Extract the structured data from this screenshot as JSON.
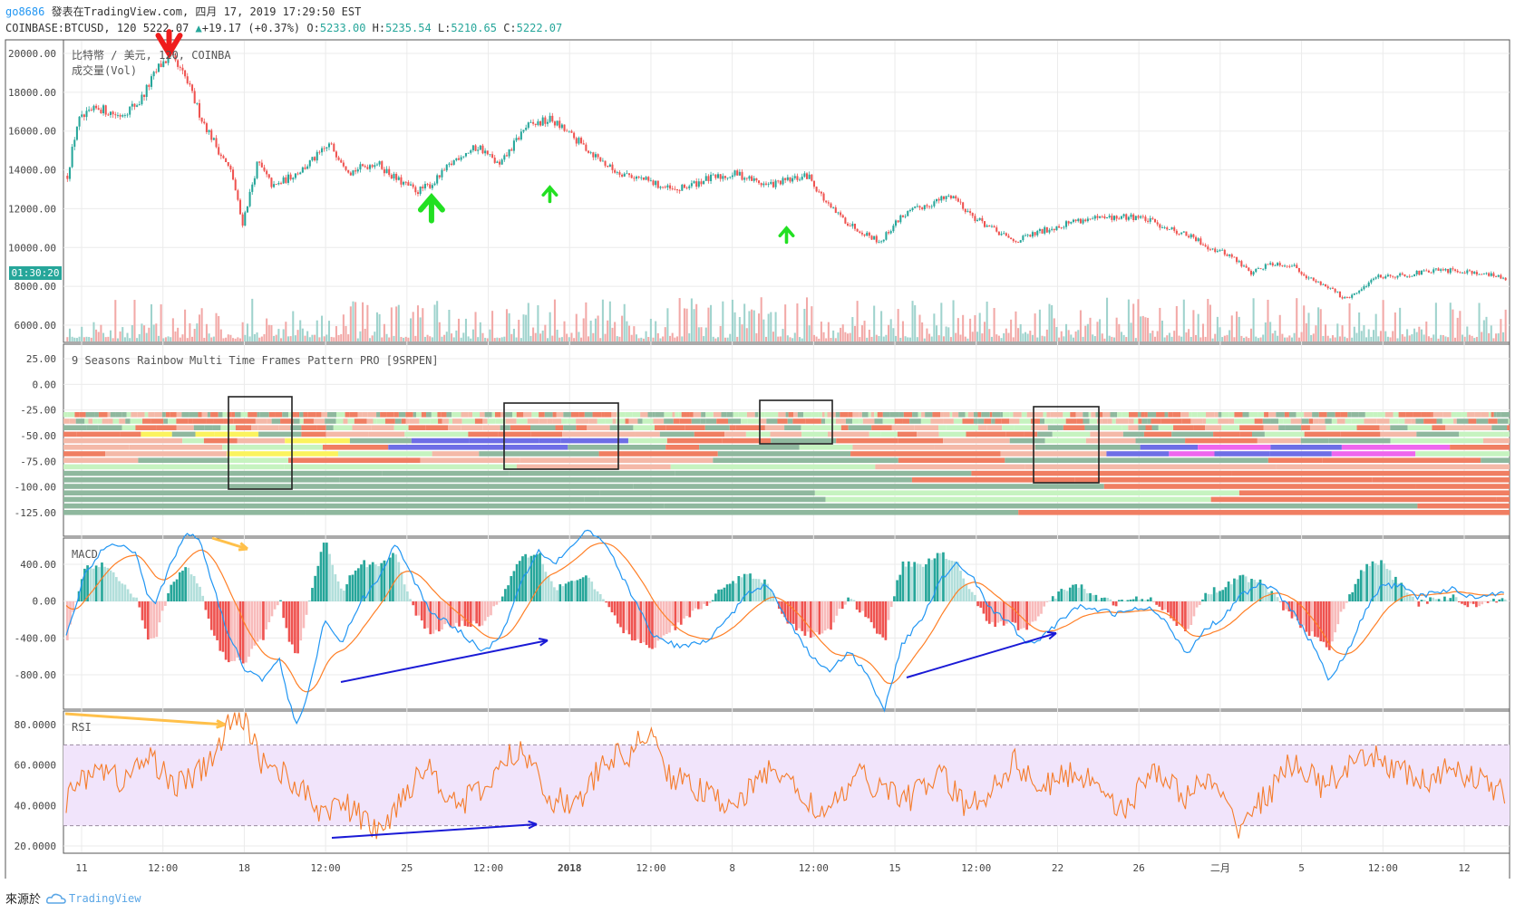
{
  "header": {
    "user": "go8686",
    "published": "發表在TradingView.com, 四月 17, 2019 17:29:50 EST",
    "symbol": "COINBASE:BTCUSD, 120",
    "last": "5222.07",
    "change": "+19.17 (+0.37%)",
    "o_label": "O:",
    "o_value": "5233.00",
    "h_label": "H:",
    "h_value": "5235.54",
    "l_label": "L:",
    "l_value": "5210.65",
    "c_label": "C:",
    "c_value": "5222.07"
  },
  "colors": {
    "up": "#26a69a",
    "down": "#ef5350",
    "macd": "#2196f3",
    "signal": "#ff7f26",
    "rsi": "#f57c2a",
    "rsi_band": "#f1e4fb",
    "arrow_blue": "#1a1ad6",
    "arrow_yellow": "#ffc04a"
  },
  "panes": {
    "price": {
      "title": "比特幣 / 美元, 120, COINBA",
      "subtitle": "成交量(Vol)",
      "time_badge": "01:30:20",
      "y_ticks": [
        "20000.00",
        "18000.00",
        "16000.00",
        "14000.00",
        "12000.00",
        "10000.00",
        "8000.00",
        "6000.00"
      ]
    },
    "rainbow": {
      "title": "9 Seasons Rainbow Multi Time Frames Pattern PRO [9SRPEN]",
      "y_ticks": [
        "25.00",
        "0.00",
        "-25.00",
        "-50.00",
        "-75.00",
        "-100.00",
        "-125.00"
      ]
    },
    "macd": {
      "title": "MACD",
      "y_ticks": [
        "400.00",
        "0.00",
        "-400.00",
        "-800.00"
      ]
    },
    "rsi": {
      "title": "RSI",
      "y_ticks": [
        "80.0000",
        "60.0000",
        "40.0000",
        "20.0000"
      ]
    }
  },
  "x_ticks": [
    "11",
    "12:00",
    "18",
    "12:00",
    "25",
    "12:00",
    "2018",
    "12:00",
    "8",
    "12:00",
    "15",
    "12:00",
    "22",
    "26",
    "二月",
    "5",
    "12:00",
    "12"
  ],
  "chart_data": [
    {
      "type": "candlestick",
      "name": "BTCUSD 120",
      "ylim": [
        5000,
        20700
      ],
      "x_index_range": [
        0,
        600
      ],
      "close_anchors": [
        [
          0,
          13700
        ],
        [
          10,
          16500
        ],
        [
          30,
          17200
        ],
        [
          50,
          16800
        ],
        [
          70,
          17500
        ],
        [
          90,
          19400
        ],
        [
          100,
          19800
        ],
        [
          115,
          18700
        ],
        [
          130,
          16700
        ],
        [
          150,
          14700
        ],
        [
          160,
          13800
        ],
        [
          170,
          11200
        ],
        [
          185,
          14400
        ],
        [
          200,
          13100
        ],
        [
          230,
          14100
        ],
        [
          255,
          15300
        ],
        [
          275,
          13900
        ],
        [
          300,
          14400
        ],
        [
          320,
          13500
        ],
        [
          340,
          12900
        ],
        [
          355,
          13300
        ],
        [
          380,
          14700
        ],
        [
          400,
          15200
        ],
        [
          420,
          14200
        ],
        [
          445,
          16200
        ],
        [
          470,
          16600
        ],
        [
          500,
          15300
        ],
        [
          530,
          14000
        ],
        [
          560,
          13500
        ],
        [
          590,
          12900
        ],
        [
          620,
          13500
        ],
        [
          650,
          13800
        ],
        [
          680,
          13200
        ],
        [
          720,
          13700
        ],
        [
          740,
          12100
        ],
        [
          760,
          11200
        ],
        [
          790,
          10300
        ],
        [
          810,
          11600
        ],
        [
          830,
          12100
        ],
        [
          860,
          12700
        ],
        [
          880,
          11600
        ],
        [
          900,
          10900
        ],
        [
          920,
          10300
        ],
        [
          950,
          10900
        ],
        [
          980,
          11400
        ],
        [
          1010,
          11500
        ],
        [
          1040,
          11600
        ],
        [
          1060,
          11200
        ],
        [
          1090,
          10600
        ],
        [
          1110,
          10000
        ],
        [
          1130,
          9600
        ],
        [
          1150,
          8700
        ],
        [
          1170,
          9200
        ],
        [
          1190,
          9100
        ],
        [
          1210,
          8300
        ],
        [
          1230,
          7900
        ],
        [
          1240,
          7300
        ],
        [
          1255,
          7700
        ],
        [
          1270,
          8500
        ],
        [
          1300,
          8600
        ],
        [
          1330,
          8800
        ],
        [
          1360,
          8800
        ],
        [
          1400,
          8400
        ]
      ],
      "sell_signals": [
        [
          100,
          19900
        ]
      ],
      "buy_signals": [
        [
          355,
          12600
        ],
        [
          470,
          13100
        ],
        [
          700,
          11000
        ]
      ]
    },
    {
      "type": "heatmap",
      "name": "9 Seasons Rainbow Multi Time Frames Pattern PRO [9SRPEN]",
      "ylim": [
        -135,
        30
      ],
      "rows": [
        -25,
        -32,
        -40,
        -47,
        -55,
        -62,
        -70,
        -77,
        -85,
        -92,
        -100,
        -107,
        -115,
        -122,
        -130,
        -137
      ],
      "highlight_boxes_x": [
        [
          71,
          98
        ],
        [
          188,
          236
        ],
        [
          301,
          332
        ],
        [
          422,
          450
        ]
      ]
    },
    {
      "type": "line",
      "name": "MACD",
      "ylim": [
        -950,
        520
      ],
      "series_macd_anchors": [
        [
          0,
          -260
        ],
        [
          10,
          180
        ],
        [
          20,
          380
        ],
        [
          30,
          420
        ],
        [
          40,
          340
        ],
        [
          45,
          80
        ],
        [
          50,
          -10
        ],
        [
          60,
          300
        ],
        [
          68,
          500
        ],
        [
          75,
          440
        ],
        [
          80,
          230
        ],
        [
          90,
          -200
        ],
        [
          100,
          -480
        ],
        [
          110,
          -560
        ],
        [
          120,
          -420
        ],
        [
          125,
          -720
        ],
        [
          130,
          -900
        ],
        [
          138,
          -560
        ],
        [
          145,
          -150
        ],
        [
          155,
          -300
        ],
        [
          165,
          -10
        ],
        [
          175,
          150
        ],
        [
          185,
          420
        ],
        [
          195,
          170
        ],
        [
          205,
          -80
        ],
        [
          215,
          -150
        ],
        [
          225,
          -260
        ],
        [
          235,
          -360
        ],
        [
          245,
          -240
        ],
        [
          255,
          120
        ],
        [
          265,
          370
        ],
        [
          275,
          280
        ],
        [
          285,
          410
        ],
        [
          293,
          520
        ],
        [
          305,
          380
        ],
        [
          315,
          120
        ],
        [
          330,
          -250
        ],
        [
          345,
          -330
        ],
        [
          360,
          -290
        ],
        [
          375,
          -80
        ],
        [
          385,
          80
        ],
        [
          395,
          120
        ],
        [
          405,
          -120
        ],
        [
          420,
          -420
        ],
        [
          430,
          -500
        ],
        [
          440,
          -360
        ],
        [
          450,
          -520
        ],
        [
          460,
          -780
        ],
        [
          470,
          -310
        ],
        [
          480,
          -150
        ],
        [
          490,
          120
        ],
        [
          500,
          290
        ],
        [
          510,
          170
        ],
        [
          520,
          -60
        ],
        [
          530,
          -150
        ],
        [
          540,
          -310
        ],
        [
          550,
          -250
        ],
        [
          560,
          -120
        ],
        [
          570,
          -40
        ],
        [
          580,
          -60
        ],
        [
          590,
          -90
        ],
        [
          600,
          -60
        ],
        [
          610,
          -50
        ],
        [
          620,
          -180
        ],
        [
          630,
          -380
        ],
        [
          640,
          -200
        ],
        [
          650,
          -120
        ],
        [
          660,
          40
        ],
        [
          670,
          120
        ],
        [
          680,
          80
        ],
        [
          690,
          -80
        ],
        [
          700,
          -300
        ],
        [
          710,
          -560
        ],
        [
          720,
          -380
        ],
        [
          730,
          -80
        ],
        [
          740,
          120
        ],
        [
          750,
          110
        ],
        [
          760,
          30
        ],
        [
          770,
          70
        ],
        [
          780,
          90
        ],
        [
          790,
          30
        ],
        [
          800,
          50
        ],
        [
          810,
          80
        ]
      ],
      "annotations": [
        "bearish divergence (yellow arrow)",
        "bullish divergence (blue arrows)"
      ]
    },
    {
      "type": "line",
      "name": "RSI",
      "ylim": [
        15,
        88
      ],
      "bands": [
        30,
        70
      ],
      "anchors": [
        [
          0,
          42
        ],
        [
          15,
          60
        ],
        [
          30,
          52
        ],
        [
          45,
          64
        ],
        [
          60,
          50
        ],
        [
          75,
          58
        ],
        [
          88,
          80
        ],
        [
          96,
          84
        ],
        [
          104,
          63
        ],
        [
          120,
          54
        ],
        [
          135,
          38
        ],
        [
          150,
          40
        ],
        [
          160,
          33
        ],
        [
          170,
          26
        ],
        [
          180,
          45
        ],
        [
          195,
          60
        ],
        [
          210,
          40
        ],
        [
          225,
          48
        ],
        [
          240,
          66
        ],
        [
          250,
          64
        ],
        [
          260,
          44
        ],
        [
          275,
          40
        ],
        [
          290,
          62
        ],
        [
          305,
          66
        ],
        [
          312,
          78
        ],
        [
          325,
          55
        ],
        [
          340,
          48
        ],
        [
          350,
          42
        ],
        [
          365,
          44
        ],
        [
          380,
          60
        ],
        [
          395,
          45
        ],
        [
          410,
          35
        ],
        [
          425,
          55
        ],
        [
          440,
          48
        ],
        [
          455,
          44
        ],
        [
          470,
          56
        ],
        [
          485,
          38
        ],
        [
          495,
          46
        ],
        [
          510,
          62
        ],
        [
          525,
          48
        ],
        [
          540,
          56
        ],
        [
          555,
          52
        ],
        [
          570,
          36
        ],
        [
          585,
          60
        ],
        [
          600,
          44
        ],
        [
          615,
          52
        ],
        [
          630,
          30
        ],
        [
          645,
          44
        ],
        [
          660,
          62
        ],
        [
          675,
          50
        ],
        [
          690,
          58
        ],
        [
          705,
          64
        ],
        [
          720,
          56
        ],
        [
          735,
          50
        ],
        [
          745,
          60
        ],
        [
          760,
          52
        ],
        [
          775,
          46
        ]
      ],
      "annotations": [
        "bearish divergence (yellow arrow)",
        "bullish divergence (blue arrow)"
      ]
    }
  ]
}
